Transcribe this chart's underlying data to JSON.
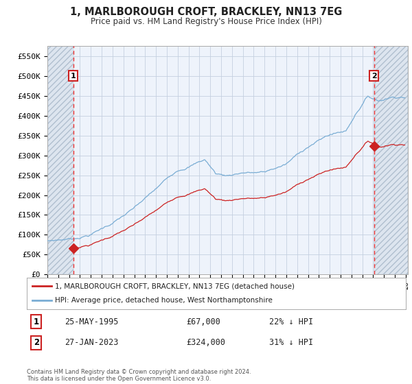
{
  "title": "1, MARLBOROUGH CROFT, BRACKLEY, NN13 7EG",
  "subtitle": "Price paid vs. HM Land Registry's House Price Index (HPI)",
  "ylim": [
    0,
    575000
  ],
  "yticks": [
    0,
    50000,
    100000,
    150000,
    200000,
    250000,
    300000,
    350000,
    400000,
    450000,
    500000,
    550000
  ],
  "ytick_labels": [
    "£0",
    "£50K",
    "£100K",
    "£150K",
    "£200K",
    "£250K",
    "£300K",
    "£350K",
    "£400K",
    "£450K",
    "£500K",
    "£550K"
  ],
  "xlim_start": 1993.0,
  "xlim_end": 2026.2,
  "transaction1_x": 1995.39,
  "transaction1_y": 67000,
  "transaction2_x": 2023.07,
  "transaction2_y": 324000,
  "hpi_color": "#7aadd4",
  "price_color": "#cc2222",
  "vline_color": "#ee3333",
  "plot_bg": "#eef3fb",
  "hatch_bg": "#dde5ef",
  "legend_line1": "1, MARLBOROUGH CROFT, BRACKLEY, NN13 7EG (detached house)",
  "legend_line2": "HPI: Average price, detached house, West Northamptonshire",
  "transaction1_date": "25-MAY-1995",
  "transaction1_price": "£67,000",
  "transaction1_hpi": "22% ↓ HPI",
  "transaction2_date": "27-JAN-2023",
  "transaction2_price": "£324,000",
  "transaction2_hpi": "31% ↓ HPI",
  "footer": "Contains HM Land Registry data © Crown copyright and database right 2024.\nThis data is licensed under the Open Government Licence v3.0."
}
